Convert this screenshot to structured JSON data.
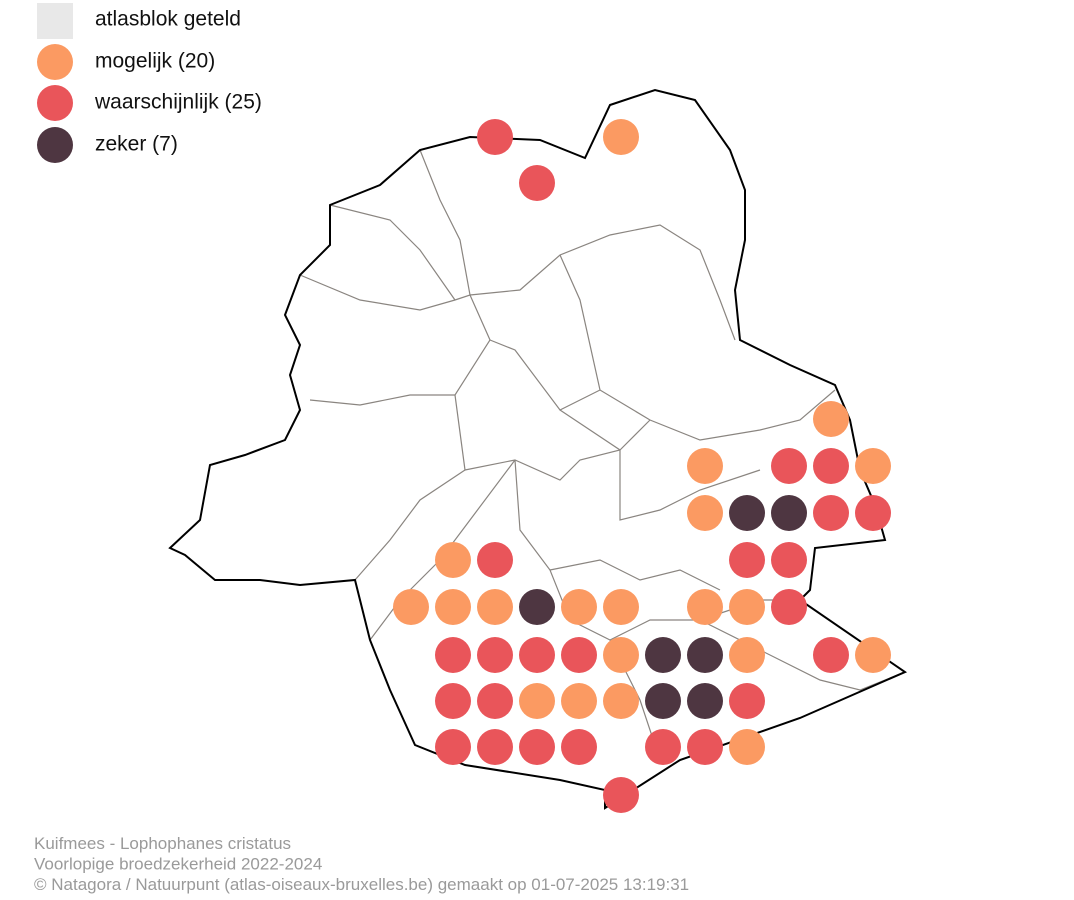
{
  "legend": {
    "items": [
      {
        "label": "atlasblok geteld",
        "color": "#e8e8e8"
      },
      {
        "label": "mogelijk (20)",
        "color": "#fb9a62"
      },
      {
        "label": "waarschijnlijk (25)",
        "color": "#e9555a"
      },
      {
        "label": "zeker (7)",
        "color": "#4e3641"
      }
    ]
  },
  "footer": {
    "lines": [
      "Kuifmees - Lophophanes cristatus",
      "Voorlopige broedzekerheid 2022-2024",
      "© Natagora / Natuurpunt (atlas-oiseaux-bruxelles.be) gemaakt op 01-07-2025 13:19:31"
    ]
  }
}
